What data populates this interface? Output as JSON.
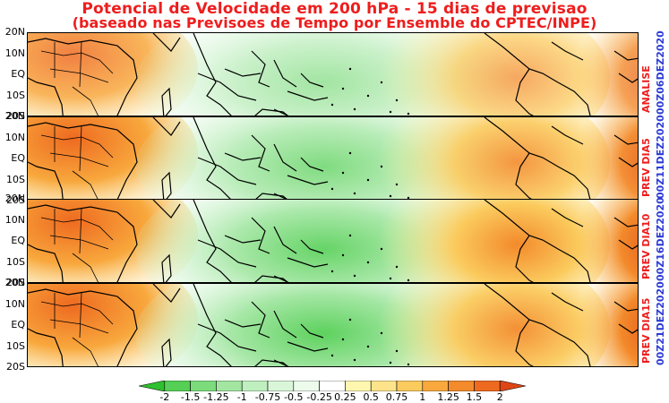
{
  "title": {
    "line1": "Potencial de Velocidade em 200 hPa - 15 dias de previsao",
    "line2": "(baseado nas Previsoes de Tempo por Ensemble do CPTEC/INPE)"
  },
  "latitude_labels": [
    "20N",
    "10N",
    "EQ",
    "10S",
    "20S"
  ],
  "panels": [
    {
      "label": "ANALISE",
      "date": "00Z06DEZ2020"
    },
    {
      "label": "PREV DIA5",
      "date": "00Z11DEZ2020"
    },
    {
      "label": "PREV DIA10",
      "date": "00Z16DEZ2020"
    },
    {
      "label": "PREV DIA15",
      "date": "00Z21DEZ2020"
    }
  ],
  "colorbar": {
    "labels": [
      "-2",
      "-1.5",
      "-1.25",
      "-1",
      "-0.75",
      "-0.5",
      "-0.25",
      "0.25",
      "0.5",
      "0.75",
      "1",
      "1.25",
      "1.5",
      "2"
    ],
    "colors": [
      "#2fc02f",
      "#55cf55",
      "#7cdc7c",
      "#a2e6a2",
      "#bfefbf",
      "#d9f6d9",
      "#ecfbec",
      "#ffffff",
      "#fff7b0",
      "#fde48a",
      "#fbcb5e",
      "#f8a83d",
      "#f38a2b",
      "#ee6a20",
      "#e04515"
    ]
  },
  "colors": {
    "title": "#ee1d1d",
    "panel_label": "#ee1d1d",
    "date_label": "#2b3bd6"
  }
}
